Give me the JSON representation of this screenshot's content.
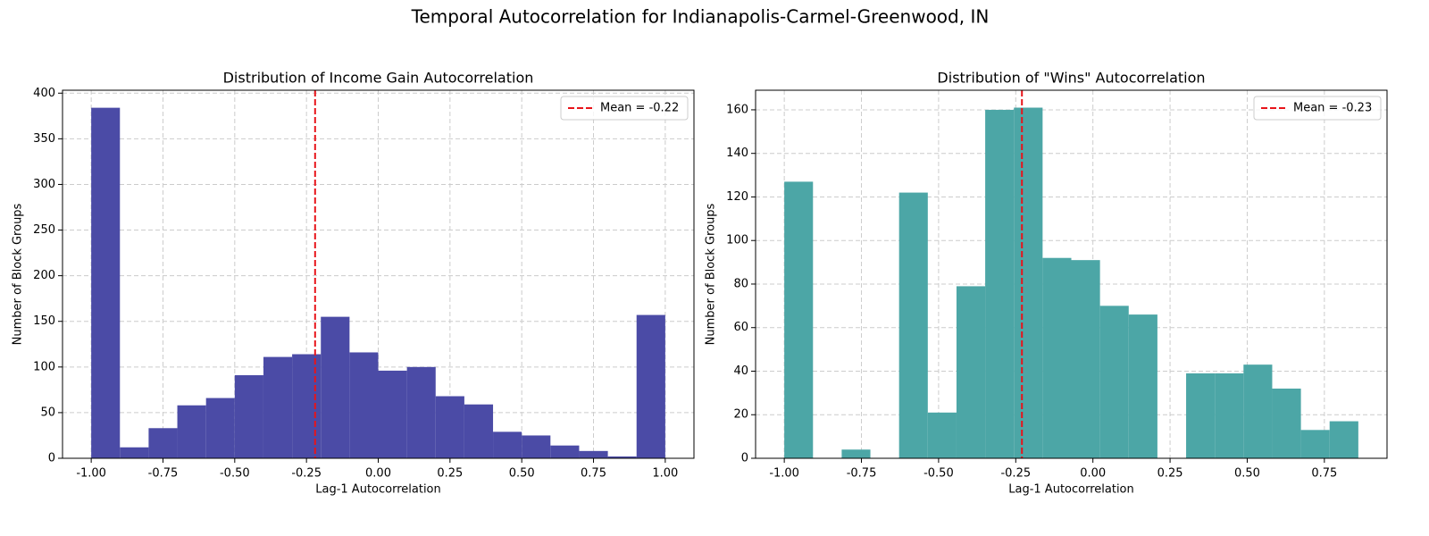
{
  "title": "Temporal Autocorrelation for Indianapolis-Carmel-Greenwood, IN",
  "chart_data": [
    {
      "type": "histogram",
      "title": "Distribution of Income Gain Autocorrelation",
      "x_label": "Lag-1 Autocorrelation",
      "y_label": "Number of Block Groups",
      "bins": [
        -1.0,
        -0.9,
        -0.8,
        -0.7,
        -0.6,
        -0.5,
        -0.4,
        -0.3,
        -0.2,
        -0.1,
        0.0,
        0.1,
        0.2,
        0.3,
        0.4,
        0.5,
        0.6,
        0.7,
        0.8,
        0.9,
        1.0
      ],
      "values": [
        384,
        12,
        33,
        58,
        66,
        91,
        111,
        114,
        155,
        116,
        96,
        100,
        68,
        59,
        29,
        25,
        14,
        8,
        2,
        157
      ],
      "color": "#4b4ba6",
      "mean_line": {
        "value": -0.22,
        "label": "Mean = -0.22",
        "color": "#e8141a"
      },
      "xlim": [
        -1.1,
        1.1
      ],
      "xticks": [
        {
          "value": -1.0,
          "label": "-1.00"
        },
        {
          "value": -0.75,
          "label": "-0.75"
        },
        {
          "value": -0.5,
          "label": "-0.50"
        },
        {
          "value": -0.25,
          "label": "-0.25"
        },
        {
          "value": 0,
          "label": "0.00"
        },
        {
          "value": 0.25,
          "label": "0.25"
        },
        {
          "value": 0.5,
          "label": "0.50"
        },
        {
          "value": 0.75,
          "label": "0.75"
        },
        {
          "value": 1.0,
          "label": "1.00"
        }
      ],
      "ylim": [
        0,
        403.2
      ],
      "yticks": [
        0,
        50,
        100,
        150,
        200,
        250,
        300,
        350,
        400
      ],
      "grid": true,
      "legend": "upper right"
    },
    {
      "type": "histogram",
      "title": "Distribution of \"Wins\" Autocorrelation",
      "x_label": "Lag-1 Autocorrelation",
      "y_label": "Number of Block Groups",
      "bins": [
        -1.0,
        -0.907,
        -0.814,
        -0.721,
        -0.628,
        -0.535,
        -0.442,
        -0.349,
        -0.256,
        -0.163,
        -0.07,
        0.023,
        0.116,
        0.209,
        0.302,
        0.395,
        0.488,
        0.581,
        0.674,
        0.767,
        0.86
      ],
      "values": [
        127,
        0,
        4,
        0,
        122,
        21,
        79,
        160,
        161,
        92,
        91,
        70,
        66,
        0,
        39,
        39,
        43,
        32,
        13,
        17
      ],
      "color": "#4ca6a6",
      "mean_line": {
        "value": -0.23,
        "label": "Mean = -0.23",
        "color": "#e8141a"
      },
      "xlim": [
        -1.093,
        0.953
      ],
      "xticks": [
        {
          "value": -1.0,
          "label": "-1.00"
        },
        {
          "value": -0.75,
          "label": "-0.75"
        },
        {
          "value": -0.5,
          "label": "-0.50"
        },
        {
          "value": -0.25,
          "label": "-0.25"
        },
        {
          "value": 0,
          "label": "0.00"
        },
        {
          "value": 0.25,
          "label": "0.25"
        },
        {
          "value": 0.5,
          "label": "0.50"
        },
        {
          "value": 0.75,
          "label": "0.75"
        }
      ],
      "ylim": [
        0,
        169
      ],
      "yticks": [
        0,
        20,
        40,
        60,
        80,
        100,
        120,
        140,
        160
      ],
      "grid": true,
      "legend": "upper right"
    }
  ]
}
